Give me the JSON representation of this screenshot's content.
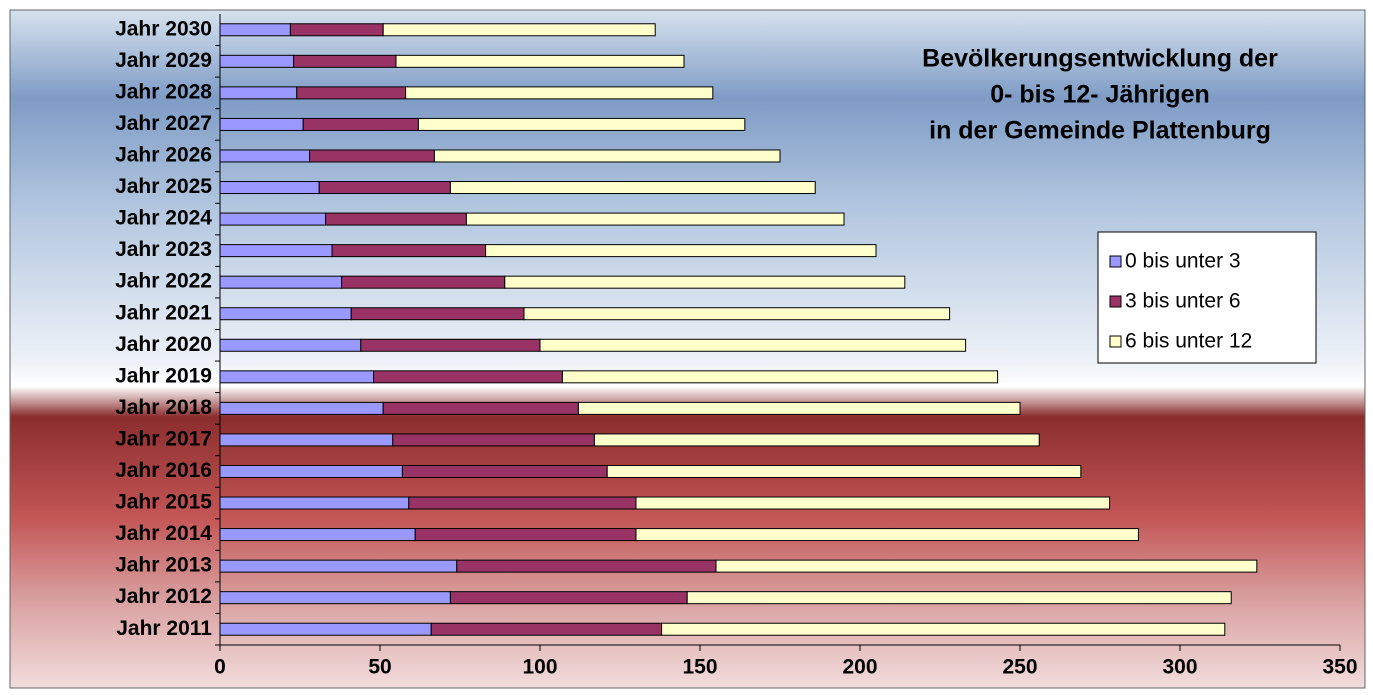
{
  "chart_data": {
    "type": "stacked-barh",
    "title": [
      "Bevölkerungsentwicklung der",
      "0- bis 12- Jährigen",
      "in der Gemeinde Plattenburg"
    ],
    "categories": [
      "Jahr 2011",
      "Jahr 2012",
      "Jahr 2013",
      "Jahr 2014",
      "Jahr 2015",
      "Jahr 2016",
      "Jahr 2017",
      "Jahr 2018",
      "Jahr 2019",
      "Jahr 2020",
      "Jahr 2021",
      "Jahr 2022",
      "Jahr 2023",
      "Jahr 2024",
      "Jahr 2025",
      "Jahr 2026",
      "Jahr 2027",
      "Jahr 2028",
      "Jahr 2029",
      "Jahr 2030"
    ],
    "series": [
      {
        "name": "0 bis unter 3",
        "color": "#9999ff",
        "values": [
          66,
          72,
          74,
          61,
          59,
          57,
          54,
          51,
          48,
          44,
          41,
          38,
          35,
          33,
          31,
          28,
          26,
          24,
          23,
          22
        ]
      },
      {
        "name": "3 bis unter 6",
        "color": "#993366",
        "values": [
          72,
          74,
          81,
          69,
          71,
          64,
          63,
          61,
          59,
          56,
          54,
          51,
          48,
          44,
          41,
          39,
          36,
          34,
          32,
          29
        ]
      },
      {
        "name": "6 bis unter 12",
        "color": "#ffffcc",
        "values": [
          176,
          170,
          169,
          157,
          148,
          148,
          139,
          138,
          136,
          133,
          133,
          125,
          122,
          118,
          114,
          108,
          102,
          96,
          90,
          85
        ]
      }
    ],
    "xlim": [
      0,
      350
    ],
    "xticks": [
      0,
      50,
      100,
      150,
      200,
      250,
      300,
      350
    ],
    "grid": false,
    "legend": "right"
  }
}
